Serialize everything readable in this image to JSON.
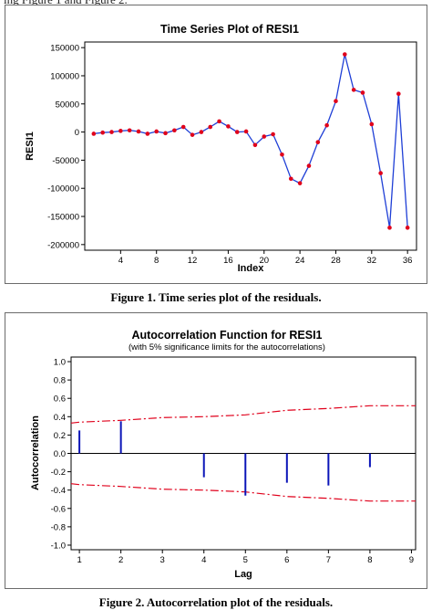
{
  "header_fragment": "ing Figure 1 and Figure 2.",
  "colors": {
    "series_line": "#1f3fd6",
    "series_marker": "#e0001b",
    "acf_bar": "#0b15b8",
    "limit_line": "#e0001b"
  },
  "chart_data": [
    {
      "type": "line",
      "title": "Time Series Plot of RESI1",
      "xlabel": "Index",
      "ylabel": "RESI1",
      "xlim": [
        0,
        37
      ],
      "ylim": [
        -210000,
        160000
      ],
      "xticks": [
        4,
        8,
        12,
        16,
        20,
        24,
        28,
        32,
        36
      ],
      "xtick_labels": [
        "4",
        "8",
        "12",
        "16",
        "20",
        "24",
        "28",
        "32",
        "36"
      ],
      "yticks": [
        -200000,
        -150000,
        -100000,
        -50000,
        0,
        50000,
        100000,
        150000
      ],
      "ytick_labels": [
        "-200000",
        "-150000",
        "-100000",
        "-50000",
        "0",
        "50000",
        "100000",
        "150000"
      ],
      "series": [
        {
          "x": [
            1,
            2,
            3,
            4,
            5,
            6,
            7,
            8,
            9,
            10,
            11,
            12,
            13,
            14,
            15,
            16,
            17,
            18,
            19,
            20,
            21,
            22,
            23,
            24,
            25,
            26,
            27,
            28,
            29,
            30,
            31,
            32,
            33,
            34,
            35,
            36
          ],
          "y": [
            -3000,
            -1000,
            0,
            2000,
            3000,
            1000,
            -3000,
            1000,
            -2000,
            3000,
            9000,
            -5000,
            0,
            9000,
            19000,
            10000,
            0,
            1000,
            -23000,
            -8000,
            -4000,
            -40000,
            -83000,
            -91000,
            -60000,
            -18000,
            12000,
            55000,
            138000,
            75000,
            70000,
            14000,
            -73000,
            -170000,
            68000,
            -170000
          ]
        }
      ],
      "grid": false
    },
    {
      "type": "bar",
      "title": "Autocorrelation Function for RESI1",
      "subtitle": "(with 5% significance limits for the autocorrelations)",
      "xlabel": "Lag",
      "ylabel": "Autocorrelation",
      "xlim": [
        0.8,
        9.1
      ],
      "ylim": [
        -1.05,
        1.05
      ],
      "xticks": [
        1,
        2,
        3,
        4,
        5,
        6,
        7,
        8,
        9
      ],
      "xtick_labels": [
        "1",
        "2",
        "3",
        "4",
        "5",
        "6",
        "7",
        "8",
        "9"
      ],
      "yticks": [
        1.0,
        0.8,
        0.6,
        0.4,
        0.2,
        0.0,
        -0.2,
        -0.4,
        -0.6,
        -0.8,
        -1.0
      ],
      "ytick_labels": [
        "1.0",
        "0.8",
        "0.6",
        "0.4",
        "0.2",
        "0.0",
        "-0.2",
        "-0.4",
        "-0.6",
        "-0.8",
        "-1.0"
      ],
      "lags": [
        1,
        2,
        3,
        4,
        5,
        6,
        7,
        8,
        9
      ],
      "values": [
        0.25,
        0.35,
        0.0,
        -0.26,
        -0.46,
        -0.32,
        -0.35,
        -0.15,
        0.0
      ],
      "limits": {
        "x": [
          0.8,
          1,
          2,
          3,
          4,
          5,
          6,
          7,
          8,
          9.1
        ],
        "upper": [
          0.33,
          0.34,
          0.36,
          0.39,
          0.4,
          0.42,
          0.47,
          0.49,
          0.52,
          0.52
        ],
        "lower": [
          -0.33,
          -0.34,
          -0.36,
          -0.39,
          -0.4,
          -0.42,
          -0.47,
          -0.49,
          -0.52,
          -0.52
        ]
      },
      "grid": false
    }
  ],
  "captions": {
    "figure1": "Figure 1. Time series plot of the residuals.",
    "figure2": "Figure 2. Autocorrelation plot of the residuals."
  }
}
